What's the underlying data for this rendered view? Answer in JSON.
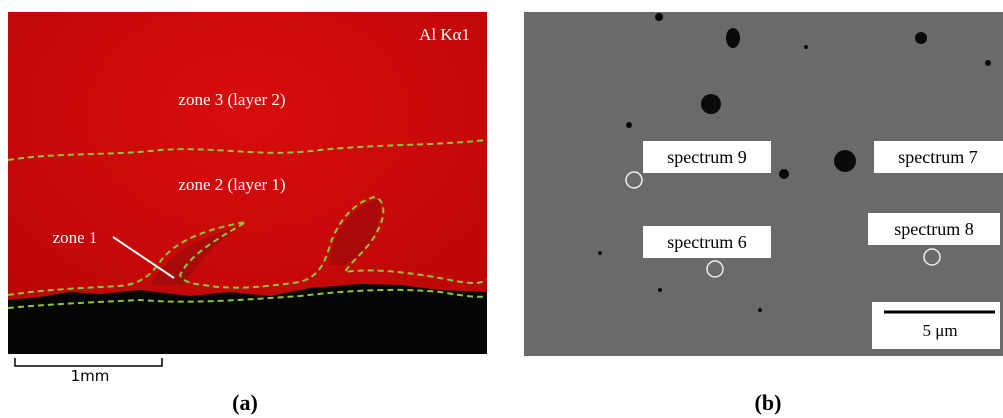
{
  "panel_a": {
    "element_label": "Al Kα1",
    "zone_3": "zone 3 (layer 2)",
    "zone_2": "zone 2 (layer 1)",
    "zone_1": "zone 1",
    "scale": "1mm",
    "caption": "(a)"
  },
  "panel_b": {
    "spectrum_9": "spectrum 9",
    "spectrum_7": "spectrum 7",
    "spectrum_6": "spectrum 6",
    "spectrum_8": "spectrum 8",
    "scale": "5 μm",
    "caption": "(b)"
  }
}
